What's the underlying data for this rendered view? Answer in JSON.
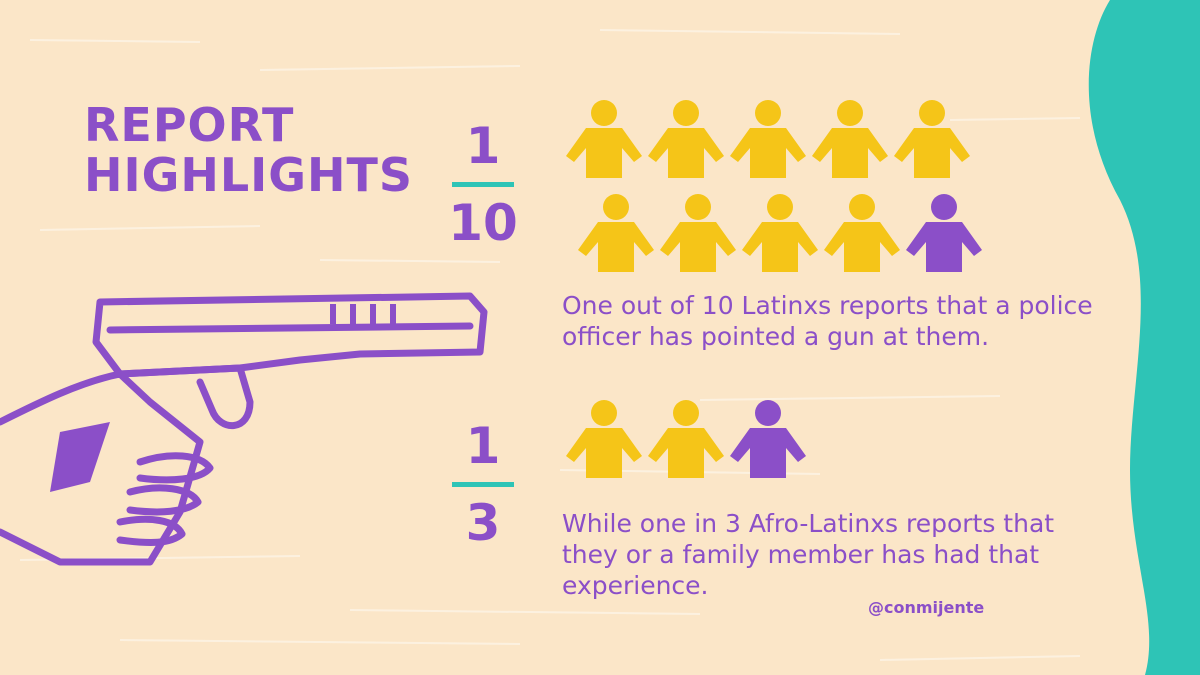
{
  "title": {
    "line1": "REPORT",
    "line2": "HIGHLIGHTS"
  },
  "colors": {
    "background": "#fbe6c8",
    "purple": "#8b4fc8",
    "yellow": "#f5c518",
    "teal": "#2ec4b6"
  },
  "stats": [
    {
      "numerator": "1",
      "denominator": "10",
      "people_total": 10,
      "people_highlighted": 1,
      "text": "One out of 10 Latinxs reports that a police officer has pointed a gun at them."
    },
    {
      "numerator": "1",
      "denominator": "3",
      "people_total": 3,
      "people_highlighted": 1,
      "text": "While one in 3 Afro-Latinxs reports that they or a family member has had that experience."
    }
  ],
  "handle": "@conmijente",
  "icons": [
    "person-icon",
    "hand-gun-illustration"
  ]
}
